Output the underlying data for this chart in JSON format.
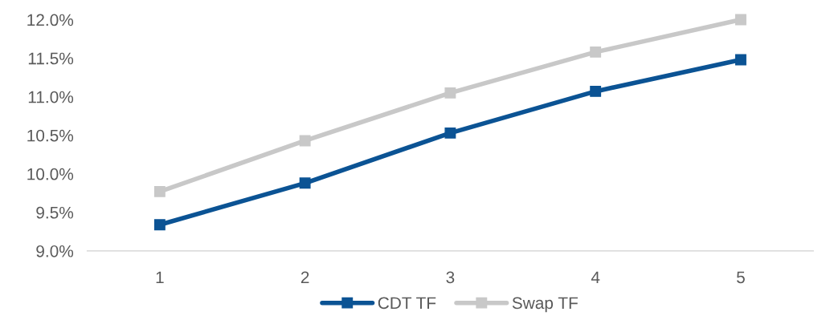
{
  "chart_data": {
    "type": "line",
    "categories": [
      "1",
      "2",
      "3",
      "4",
      "5"
    ],
    "series": [
      {
        "name": "CDT TF",
        "color": "#0b5394",
        "values": [
          9.34,
          9.88,
          10.53,
          11.07,
          11.48
        ]
      },
      {
        "name": "Swap TF",
        "color": "#c8c8c8",
        "values": [
          9.77,
          10.43,
          11.05,
          11.58,
          12.0
        ]
      }
    ],
    "ylim": [
      9.0,
      12.0
    ],
    "yticks": [
      {
        "value": 9.0,
        "label": "9.0%"
      },
      {
        "value": 9.5,
        "label": "9.5%"
      },
      {
        "value": 10.0,
        "label": "10.0%"
      },
      {
        "value": 10.5,
        "label": "10.5%"
      },
      {
        "value": 11.0,
        "label": "11.0%"
      },
      {
        "value": 11.5,
        "label": "11.5%"
      },
      {
        "value": 12.0,
        "label": "12.0%"
      }
    ],
    "grid": false,
    "legend": "bottom",
    "marker": "square",
    "line_style": "solid"
  }
}
